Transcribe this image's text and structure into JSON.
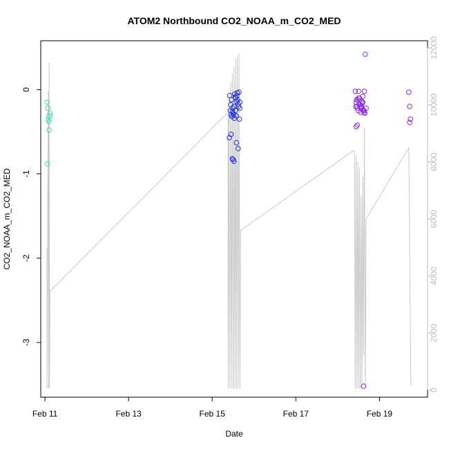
{
  "chart_data": {
    "type": "scatter",
    "title": "ATOM2 Northbound CO2_NOAA_m_CO2_MED",
    "xlabel": "Date",
    "ylabel": "CO2_NOAA_m_CO2_MED",
    "xlim": [
      10.9,
      20.15
    ],
    "ylim": [
      -3.65,
      0.58
    ],
    "x_ticks": [
      {
        "value": 11,
        "label": "Feb 11"
      },
      {
        "value": 13,
        "label": "Feb 13"
      },
      {
        "value": 15,
        "label": "Feb 15"
      },
      {
        "value": 17,
        "label": "Feb 17"
      },
      {
        "value": 19,
        "label": "Feb 19"
      }
    ],
    "y_ticks": [
      0,
      -1,
      -2,
      -3
    ],
    "y2lim": [
      -250,
      12250
    ],
    "y2_ticks": [
      0,
      2000,
      4000,
      6000,
      8000,
      10000,
      12000
    ],
    "colors": {
      "series_1": "#40e0b0",
      "series_2": "#2233dd",
      "series_3": "#8a2be2",
      "secondary_line": "#c8c8c8"
    },
    "series": [
      {
        "values_x": [
          11.05,
          11.07,
          11.08,
          11.1,
          11.12,
          11.1,
          11.13,
          11.06,
          11.09
        ],
        "values_y": [
          -0.15,
          -0.22,
          -0.36,
          -0.38,
          -0.28,
          -0.48,
          -0.31,
          -0.88,
          -0.32
        ]
      },
      {
        "values_x": [
          15.42,
          15.44,
          15.46,
          15.48,
          15.5,
          15.52,
          15.54,
          15.56,
          15.58,
          15.6,
          15.62,
          15.64,
          15.66,
          15.43,
          15.45,
          15.47,
          15.49,
          15.51,
          15.53,
          15.55,
          15.57,
          15.59,
          15.61,
          15.63,
          15.65,
          15.41,
          15.45,
          15.48,
          15.52,
          15.58,
          15.62,
          15.66,
          15.5,
          15.56
        ],
        "values_y": [
          -0.07,
          -0.18,
          -0.12,
          -0.26,
          -0.28,
          -0.2,
          -0.05,
          -0.1,
          -0.14,
          -0.04,
          -0.17,
          -0.03,
          -0.22,
          -0.25,
          -0.3,
          -0.32,
          -0.22,
          -0.3,
          -0.34,
          -0.09,
          -0.31,
          -0.07,
          -0.12,
          -0.2,
          -0.35,
          -0.57,
          -0.53,
          -0.82,
          -0.85,
          -0.63,
          -0.7,
          -0.15,
          -0.83,
          -0.25
        ]
      },
      {
        "values_x": [
          18.42,
          18.44,
          18.46,
          18.48,
          18.5,
          18.52,
          18.54,
          18.56,
          18.58,
          18.6,
          18.62,
          18.64,
          18.66,
          18.43,
          18.45,
          18.47,
          18.49,
          18.51,
          18.53,
          18.55,
          18.57,
          18.59,
          18.61,
          18.63,
          18.65,
          18.44,
          18.47,
          18.5,
          18.55,
          18.6,
          18.63,
          18.68,
          18.62,
          19.7,
          19.72,
          19.74,
          19.72
        ],
        "values_y": [
          -0.02,
          -0.15,
          -0.2,
          -0.12,
          -0.02,
          -0.1,
          -0.18,
          -0.22,
          -0.14,
          -0.08,
          -0.25,
          -0.02,
          0.42,
          -0.2,
          -0.12,
          -0.22,
          -0.25,
          -0.17,
          -0.18,
          -0.27,
          -0.2,
          -0.16,
          -0.24,
          -0.27,
          -0.28,
          -0.44,
          -0.42,
          -0.1,
          -0.2,
          -0.15,
          -0.25,
          -0.22,
          -3.52,
          -0.03,
          -0.2,
          -0.35,
          -0.39
        ]
      }
    ],
    "secondary_series": {
      "x": [
        11.05,
        11.05,
        11.06,
        11.07,
        11.08,
        11.09,
        11.1,
        11.11,
        11.12,
        11.15,
        15.35,
        15.38,
        15.38,
        15.4,
        15.42,
        15.44,
        15.46,
        15.48,
        15.5,
        15.52,
        15.54,
        15.56,
        15.58,
        15.6,
        15.62,
        15.64,
        15.66,
        15.68,
        18.38,
        18.4,
        18.42,
        18.44,
        18.46,
        18.48,
        18.5,
        18.52,
        18.54,
        18.56,
        18.58,
        18.6,
        18.62,
        18.64,
        18.66,
        18.68,
        19.7,
        19.75
      ],
      "values": [
        5000,
        50,
        3000,
        7500,
        10500,
        50,
        11500,
        50,
        3500,
        3500,
        9700,
        9700,
        50,
        10200,
        50,
        10800,
        50,
        11100,
        50,
        11300,
        50,
        11600,
        50,
        11700,
        50,
        11800,
        50,
        5600,
        8400,
        8400,
        50,
        8200,
        50,
        8000,
        50,
        7800,
        50,
        6800,
        50,
        7500,
        1200,
        9200,
        50,
        6000,
        8500,
        150
      ]
    }
  }
}
